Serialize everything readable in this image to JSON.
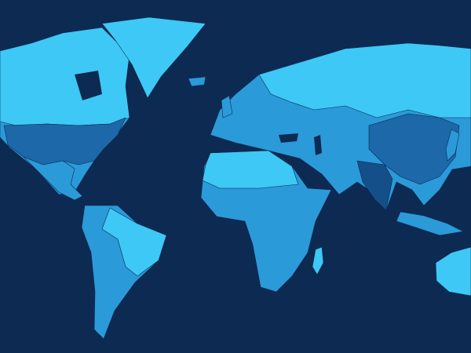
{
  "colors": {
    "ocean": "#0c2a52",
    "light": "#3ec8f5",
    "mid": "#2b9ad8",
    "dark": "#1c68a8",
    "deep": "#154f8a"
  },
  "map_regions": [
    {
      "name": "north-america",
      "shade": "mid"
    },
    {
      "name": "canada",
      "shade": "light"
    },
    {
      "name": "usa",
      "shade": "dark"
    },
    {
      "name": "mexico-central-america",
      "shade": "mid"
    },
    {
      "name": "greenland",
      "shade": "light"
    },
    {
      "name": "south-america",
      "shade": "mid"
    },
    {
      "name": "brazil",
      "shade": "light"
    },
    {
      "name": "eurasia",
      "shade": "mid"
    },
    {
      "name": "russia",
      "shade": "light"
    },
    {
      "name": "china",
      "shade": "dark"
    },
    {
      "name": "india",
      "shade": "deep"
    },
    {
      "name": "africa",
      "shade": "mid"
    },
    {
      "name": "north-africa",
      "shade": "light"
    },
    {
      "name": "madagascar",
      "shade": "light"
    },
    {
      "name": "australia",
      "shade": "light"
    },
    {
      "name": "indonesia",
      "shade": "mid"
    },
    {
      "name": "japan",
      "shade": "mid"
    },
    {
      "name": "uk",
      "shade": "mid"
    },
    {
      "name": "iceland",
      "shade": "mid"
    }
  ]
}
